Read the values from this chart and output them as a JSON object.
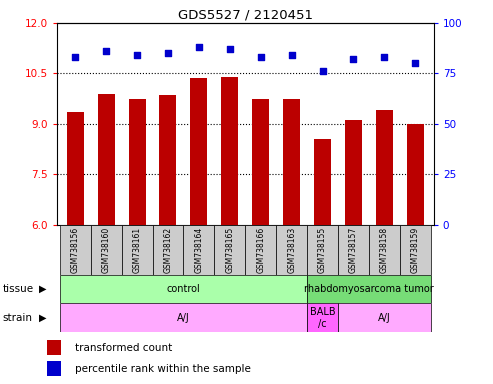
{
  "title": "GDS5527 / 2120451",
  "samples": [
    "GSM738156",
    "GSM738160",
    "GSM738161",
    "GSM738162",
    "GSM738164",
    "GSM738165",
    "GSM738166",
    "GSM738163",
    "GSM738155",
    "GSM738157",
    "GSM738158",
    "GSM738159"
  ],
  "bar_values": [
    9.35,
    9.9,
    9.75,
    9.85,
    10.35,
    10.4,
    9.75,
    9.75,
    8.55,
    9.1,
    9.4,
    9.0
  ],
  "dot_values": [
    83,
    86,
    84,
    85,
    88,
    87,
    83,
    84,
    76,
    82,
    83,
    80
  ],
  "bar_color": "#bb0000",
  "dot_color": "#0000cc",
  "bg_color": "#ffffff",
  "ylim_left": [
    6,
    12
  ],
  "ylim_right": [
    0,
    100
  ],
  "yticks_left": [
    6,
    7.5,
    9,
    10.5,
    12
  ],
  "yticks_right": [
    0,
    25,
    50,
    75,
    100
  ],
  "grid_ticks": [
    7.5,
    9,
    10.5
  ],
  "tissue_groups": [
    {
      "label": "control",
      "start": 0,
      "end": 8,
      "color": "#aaffaa"
    },
    {
      "label": "rhabdomyosarcoma tumor",
      "start": 8,
      "end": 12,
      "color": "#77dd77"
    }
  ],
  "strain_groups": [
    {
      "label": "A/J",
      "start": 0,
      "end": 8,
      "color": "#ffaaff"
    },
    {
      "label": "BALB\n/c",
      "start": 8,
      "end": 9,
      "color": "#ff66ff"
    },
    {
      "label": "A/J",
      "start": 9,
      "end": 12,
      "color": "#ffaaff"
    }
  ],
  "sample_box_color": "#cccccc",
  "legend_bar_label": "transformed count",
  "legend_dot_label": "percentile rank within the sample",
  "tissue_label": "tissue",
  "strain_label": "strain",
  "bar_width": 0.55
}
